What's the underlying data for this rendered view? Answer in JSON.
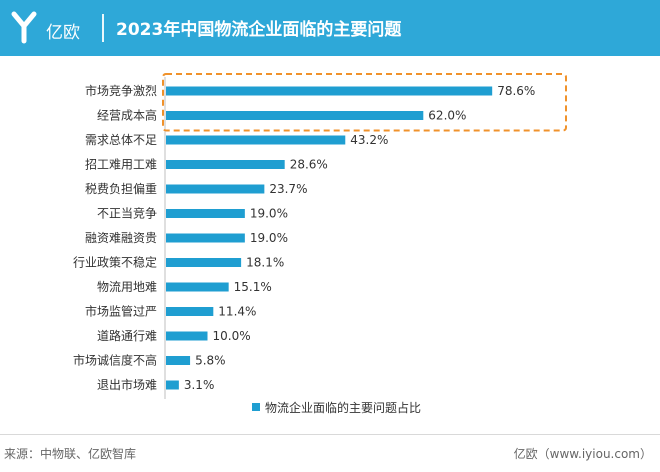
{
  "header": {
    "logo_text": "亿欧",
    "title": "2023年中国物流企业面临的主要问题"
  },
  "footer": {
    "source": "来源：中物联、亿欧智库",
    "credit": "亿欧（www.iyiou.com）"
  },
  "colors": {
    "header": "#2ea8d8",
    "bar": "#1f9ed1",
    "highlight_box": "#f0922b"
  },
  "chart_data": {
    "type": "bar",
    "orientation": "horizontal",
    "categories": [
      "市场竞争激烈",
      "经营成本高",
      "需求总体不足",
      "招工难用工难",
      "税费负担偏重",
      "不正当竞争",
      "融资难融资贵",
      "行业政策不稳定",
      "物流用地难",
      "市场监管过严",
      "道路通行难",
      "市场诚信度不高",
      "退出市场难"
    ],
    "values": [
      78.6,
      62.0,
      43.2,
      28.6,
      23.7,
      19.0,
      19.0,
      18.1,
      15.1,
      11.4,
      10.0,
      5.8,
      3.1
    ],
    "value_labels": [
      "78.6%",
      "62.0%",
      "43.2%",
      "28.6%",
      "23.7%",
      "19.0%",
      "19.0%",
      "18.1%",
      "15.1%",
      "11.4%",
      "10.0%",
      "5.8%",
      "3.1%"
    ],
    "series": [
      {
        "name": "物流企业面临的主要问题占比"
      }
    ],
    "legend_position": "bottom",
    "highlighted_categories": [
      "市场竞争激烈",
      "经营成本高"
    ],
    "unit": "%",
    "grid": false
  }
}
